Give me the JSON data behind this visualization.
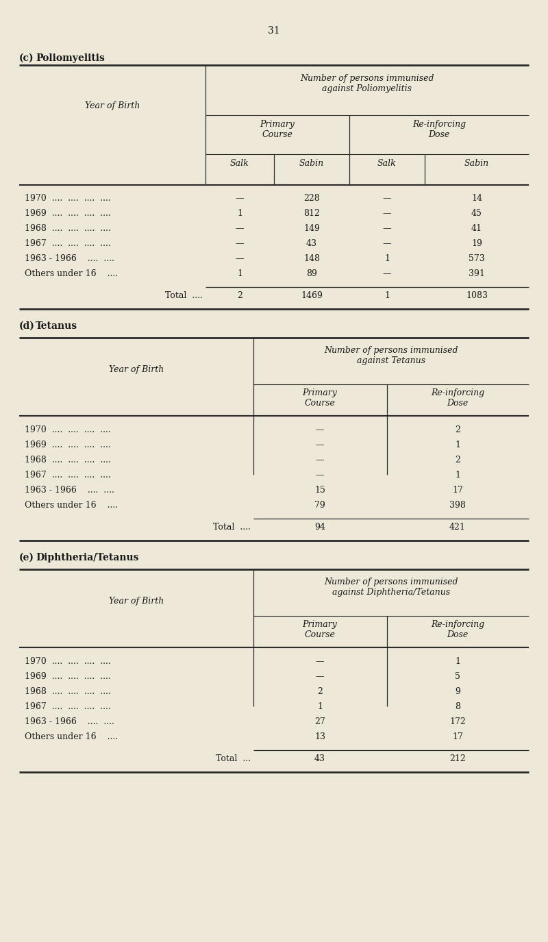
{
  "bg_color": "#ede8d8",
  "text_color": "#1a1a1a",
  "page_number": "31",
  "section_c": {
    "label": "(c)",
    "title": "Poliomyelitis",
    "col_header_main": "Number of persons immunised\nagainst Poliomyelitis",
    "col_header_sub1": "Primary\nCourse",
    "col_header_sub2": "Re-inforcing\nDose",
    "col_header_sub1a": "Salk",
    "col_header_sub1b": "Sabin",
    "col_header_sub2a": "Salk",
    "col_header_sub2b": "Sabin",
    "row_label": "Year of Birth",
    "rows": [
      [
        "1970  ....  ....  ....  ....",
        "—",
        "228",
        "—",
        "14"
      ],
      [
        "1969  ....  ....  ....  ....",
        "1",
        "812",
        "—",
        "45"
      ],
      [
        "1968  ....  ....  ....  ....",
        "—",
        "149",
        "—",
        "41"
      ],
      [
        "1967  ....  ....  ....  ....",
        "—",
        "43",
        "—",
        "19"
      ],
      [
        "1963 - 1966    ....  ....",
        "—",
        "148",
        "1",
        "573"
      ],
      [
        "Others under 16    ....",
        "1",
        "89",
        "—",
        "391"
      ]
    ],
    "total_row": [
      "Total  ....",
      "2",
      "1469",
      "1",
      "1083"
    ]
  },
  "section_d": {
    "label": "(d)",
    "title": "Tetanus",
    "col_header_main": "Number of persons immunised\nagainst Tetanus",
    "col_header_sub1": "Primary\nCourse",
    "col_header_sub2": "Re-inforcing\nDose",
    "row_label": "Year of Birth",
    "rows": [
      [
        "1970  ....  ....  ....  ....",
        "—",
        "2"
      ],
      [
        "1969  ....  ....  ....  ....",
        "—",
        "1"
      ],
      [
        "1968  ....  ....  ....  ....",
        "—",
        "2"
      ],
      [
        "1967  ....  ....  ....  ....",
        "—",
        "1"
      ],
      [
        "1963 - 1966    ....  ....",
        "15",
        "17"
      ],
      [
        "Others under 16    ....",
        "79",
        "398"
      ]
    ],
    "total_row": [
      "Total  ....",
      "94",
      "421"
    ]
  },
  "section_e": {
    "label": "(e)",
    "title": "Diphtheria/Tetanus",
    "col_header_main": "Number of persons immunised\nagainst Diphtheria/Tetanus",
    "col_header_sub1": "Primary\nCourse",
    "col_header_sub2": "Re-inforcing\nDose",
    "row_label": "Year of Birth",
    "rows": [
      [
        "1970  ....  ....  ....  ....",
        "—",
        "1"
      ],
      [
        "1969  ....  ....  ....  ....",
        "—",
        "5"
      ],
      [
        "1968  ....  ....  ....  ....",
        "2",
        "9"
      ],
      [
        "1967  ....  ....  ....  ....",
        "1",
        "8"
      ],
      [
        "1963 - 1966    ....  ....",
        "27",
        "172"
      ],
      [
        "Others under 16    ....",
        "13",
        "17"
      ]
    ],
    "total_row": [
      "Total  ...",
      "43",
      "212"
    ]
  }
}
